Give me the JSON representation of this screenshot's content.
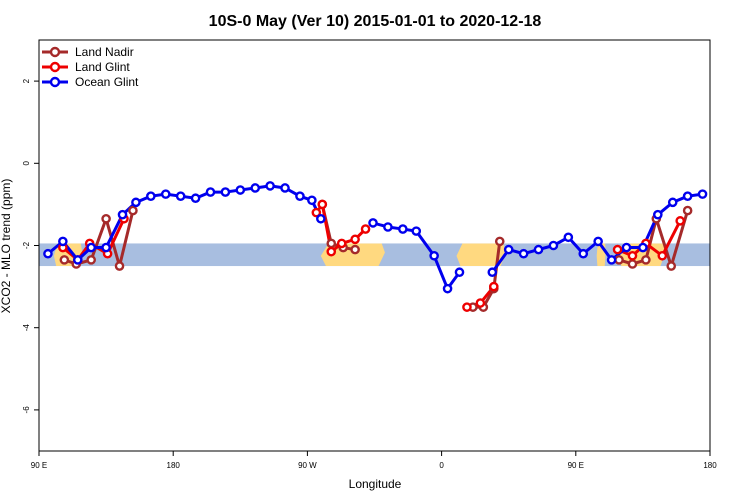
{
  "chart_data": {
    "type": "line",
    "title": "10S-0 May (Ver 10)   2015-01-01 to 2020-12-18",
    "xlabel": "Longitude",
    "ylabel": "XCO2 - MLO trend (ppm)",
    "xlim": [
      90,
      540
    ],
    "ylim": [
      -7,
      3
    ],
    "xticks": [
      {
        "value": 90,
        "label": "90 E"
      },
      {
        "value": 180,
        "label": "180"
      },
      {
        "value": 270,
        "label": "90 W"
      },
      {
        "value": 360,
        "label": "0"
      },
      {
        "value": 450,
        "label": "90 E"
      },
      {
        "value": 540,
        "label": "180"
      }
    ],
    "yticks": [
      {
        "value": 2,
        "label": "2"
      },
      {
        "value": 0,
        "label": "0"
      },
      {
        "value": -2,
        "label": "-2"
      },
      {
        "value": -4,
        "label": "-4"
      },
      {
        "value": -6,
        "label": "-6"
      }
    ],
    "legend_position": "top-left",
    "grid": false,
    "background_band": {
      "y_range": [
        -2.5,
        -1.95
      ],
      "color": "#a8bee0"
    },
    "land_patches": [
      {
        "x_range": [
          100,
          119
        ],
        "color": "#ffd980"
      },
      {
        "x_range": [
          279,
          322
        ],
        "color": "#ffd980"
      },
      {
        "x_range": [
          370,
          403
        ],
        "color": "#ffd980"
      },
      {
        "x_range": [
          464,
          470
        ],
        "color": "#ffd980"
      },
      {
        "x_range": [
          478,
          510
        ],
        "color": "#ffd980"
      }
    ],
    "series": [
      {
        "name": "Land Nadir",
        "color": "#a52a2a",
        "segments": [
          [
            [
              107,
              -2.35
            ],
            [
              115,
              -2.45
            ],
            [
              125,
              -2.35
            ],
            [
              135,
              -1.35
            ],
            [
              144,
              -2.5
            ],
            [
              153,
              -1.15
            ]
          ],
          [
            [
              280,
              -1.0
            ],
            [
              286,
              -1.95
            ],
            [
              294,
              -2.05
            ],
            [
              302,
              -2.1
            ]
          ],
          [
            [
              381,
              -3.5
            ],
            [
              388,
              -3.5
            ],
            [
              395,
              -3.05
            ],
            [
              399,
              -1.9
            ]
          ],
          [
            [
              479,
              -2.35
            ],
            [
              488,
              -2.45
            ],
            [
              497,
              -2.35
            ],
            [
              504,
              -1.35
            ],
            [
              514,
              -2.5
            ],
            [
              525,
              -1.15
            ]
          ]
        ]
      },
      {
        "name": "Land Glint",
        "color": "#ee0000",
        "segments": [
          [
            [
              106,
              -2.05
            ],
            [
              116,
              -2.35
            ],
            [
              124,
              -1.95
            ],
            [
              136,
              -2.2
            ],
            [
              147,
              -1.35
            ]
          ],
          [
            [
              276,
              -1.2
            ],
            [
              280,
              -1.0
            ],
            [
              286,
              -2.15
            ],
            [
              293,
              -1.95
            ],
            [
              302,
              -1.85
            ],
            [
              309,
              -1.6
            ]
          ],
          [
            [
              377,
              -3.5
            ],
            [
              386,
              -3.4
            ],
            [
              395,
              -3.0
            ]
          ],
          [
            [
              478,
              -2.1
            ],
            [
              488,
              -2.25
            ],
            [
              497,
              -1.95
            ],
            [
              508,
              -2.25
            ],
            [
              520,
              -1.4
            ]
          ]
        ]
      },
      {
        "name": "Ocean Glint",
        "color": "#0000ee",
        "segments": [
          [
            [
              96,
              -2.2
            ],
            [
              106,
              -1.9
            ],
            [
              116,
              -2.35
            ],
            [
              125,
              -2.05
            ],
            [
              135,
              -2.05
            ],
            [
              146,
              -1.25
            ],
            [
              155,
              -0.95
            ],
            [
              165,
              -0.8
            ],
            [
              175,
              -0.75
            ],
            [
              185,
              -0.8
            ],
            [
              195,
              -0.85
            ],
            [
              205,
              -0.7
            ],
            [
              215,
              -0.7
            ],
            [
              225,
              -0.65
            ],
            [
              235,
              -0.6
            ],
            [
              245,
              -0.55
            ],
            [
              255,
              -0.6
            ],
            [
              265,
              -0.8
            ],
            [
              273,
              -0.9
            ],
            [
              279,
              -1.35
            ]
          ],
          [
            [
              314,
              -1.45
            ],
            [
              324,
              -1.55
            ],
            [
              334,
              -1.6
            ],
            [
              343,
              -1.65
            ],
            [
              355,
              -2.25
            ],
            [
              364,
              -3.05
            ],
            [
              372,
              -2.65
            ]
          ],
          [
            [
              394,
              -2.65
            ],
            [
              405,
              -2.1
            ],
            [
              415,
              -2.2
            ],
            [
              425,
              -2.1
            ],
            [
              435,
              -2.0
            ],
            [
              445,
              -1.8
            ],
            [
              455,
              -2.2
            ],
            [
              465,
              -1.9
            ],
            [
              474,
              -2.35
            ],
            [
              484,
              -2.05
            ],
            [
              495,
              -2.05
            ],
            [
              505,
              -1.25
            ],
            [
              515,
              -0.95
            ],
            [
              525,
              -0.8
            ],
            [
              535,
              -0.75
            ]
          ]
        ]
      }
    ]
  }
}
